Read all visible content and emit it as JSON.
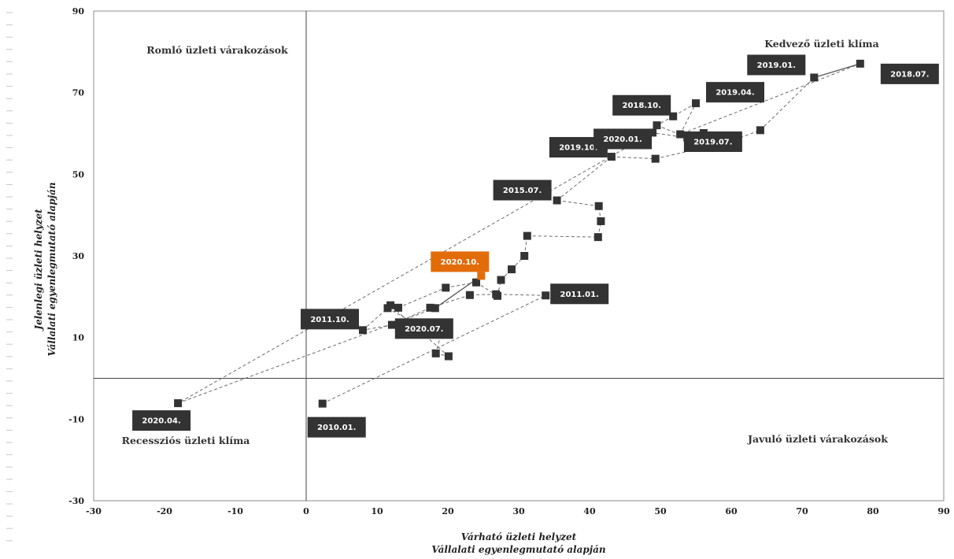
{
  "chart_data": {
    "type": "scatter",
    "xlabel": [
      "Várható üzleti helyzet",
      "Vállalati egyenlegmutató alapján"
    ],
    "ylabel": [
      "Jelenlegi üzleti helyzet",
      "Vállalati egyenlegmutató alapján"
    ],
    "xlim": [
      -30,
      90
    ],
    "ylim": [
      -30,
      90
    ],
    "xticks": [
      "-30",
      "-20",
      "-10",
      "0",
      "10",
      "20",
      "30",
      "40",
      "50",
      "60",
      "70",
      "80",
      "90"
    ],
    "yticks": [
      "90",
      "70",
      "50",
      "30",
      "10",
      "-10",
      "-30"
    ],
    "quadrants": {
      "top_left": "Romló üzleti várakozások",
      "top_right": "Kedvező üzleti klíma",
      "bottom_left": "Recessziós üzleti klíma",
      "bottom_right": "Javuló üzleti várakozások"
    },
    "colors": {
      "series": "#333333",
      "highlight": "#e36c0a",
      "tag_text": "#ffffff",
      "axis": "#444444"
    },
    "grid": false,
    "points": [
      [
        2.3,
        -6.2
      ],
      [
        33.8,
        20.3
      ],
      [
        26.8,
        20.6
      ],
      [
        23.1,
        20.4
      ],
      [
        17.5,
        17.3
      ],
      [
        12.1,
        13.1
      ],
      [
        8.0,
        11.8
      ],
      [
        11.5,
        17.2
      ],
      [
        15.9,
        12.9
      ],
      [
        19.4,
        13.2
      ],
      [
        18.3,
        6.1
      ],
      [
        20.1,
        5.4
      ],
      [
        11.9,
        17.9
      ],
      [
        13.0,
        17.3
      ],
      [
        19.7,
        22.2
      ],
      [
        24.0,
        23.5
      ],
      [
        27.0,
        20.2
      ],
      [
        27.5,
        24.1
      ],
      [
        29.0,
        26.7
      ],
      [
        30.8,
        30.0
      ],
      [
        31.2,
        34.9
      ],
      [
        41.2,
        34.6
      ],
      [
        41.6,
        38.5
      ],
      [
        41.3,
        42.2
      ],
      [
        35.4,
        43.6
      ],
      [
        43.1,
        54.3
      ],
      [
        49.3,
        53.8
      ],
      [
        59.8,
        58.0
      ],
      [
        64.1,
        60.8
      ],
      [
        71.7,
        73.7
      ],
      [
        78.2,
        77.1
      ],
      [
        52.8,
        59.8
      ],
      [
        55.0,
        67.4
      ],
      [
        51.8,
        64.2
      ],
      [
        49.5,
        62.0
      ],
      [
        53.8,
        59.0
      ],
      [
        56.1,
        60.1
      ],
      [
        54.5,
        58.7
      ],
      [
        48.9,
        60.2
      ],
      [
        -18.1,
        -6.1
      ],
      [
        18.2,
        17.2
      ],
      [
        24.7,
        25.1
      ]
    ],
    "highlight_index": 41,
    "solid_segments": [
      [
        29,
        30
      ],
      [
        33,
        38
      ],
      [
        40,
        41
      ]
    ],
    "labels": [
      {
        "text": "2010.01.",
        "x": 2.3,
        "y": -6.2
      },
      {
        "text": "2011.01.",
        "x": 33.8,
        "y": 20.3
      },
      {
        "text": "2011.10.",
        "x": 8.0,
        "y": 11.8
      },
      {
        "text": "2015.07.",
        "x": 35.4,
        "y": 43.6
      },
      {
        "text": "2018.07.",
        "x": 78.2,
        "y": 77.1
      },
      {
        "text": "2018.10.",
        "x": 51.8,
        "y": 64.2
      },
      {
        "text": "2019.01.",
        "x": 71.7,
        "y": 73.7
      },
      {
        "text": "2019.04.",
        "x": 55.0,
        "y": 67.4
      },
      {
        "text": "2019.07.",
        "x": 56.1,
        "y": 60.1
      },
      {
        "text": "2019.10.",
        "x": 43.1,
        "y": 54.3
      },
      {
        "text": "2020.01.",
        "x": 48.9,
        "y": 60.2
      },
      {
        "text": "2020.04.",
        "x": -18.1,
        "y": -6.1
      },
      {
        "text": "2020.07.",
        "x": 18.2,
        "y": 17.2
      },
      {
        "text": "2020.10.",
        "x": 24.7,
        "y": 25.1,
        "highlight": true
      }
    ]
  }
}
